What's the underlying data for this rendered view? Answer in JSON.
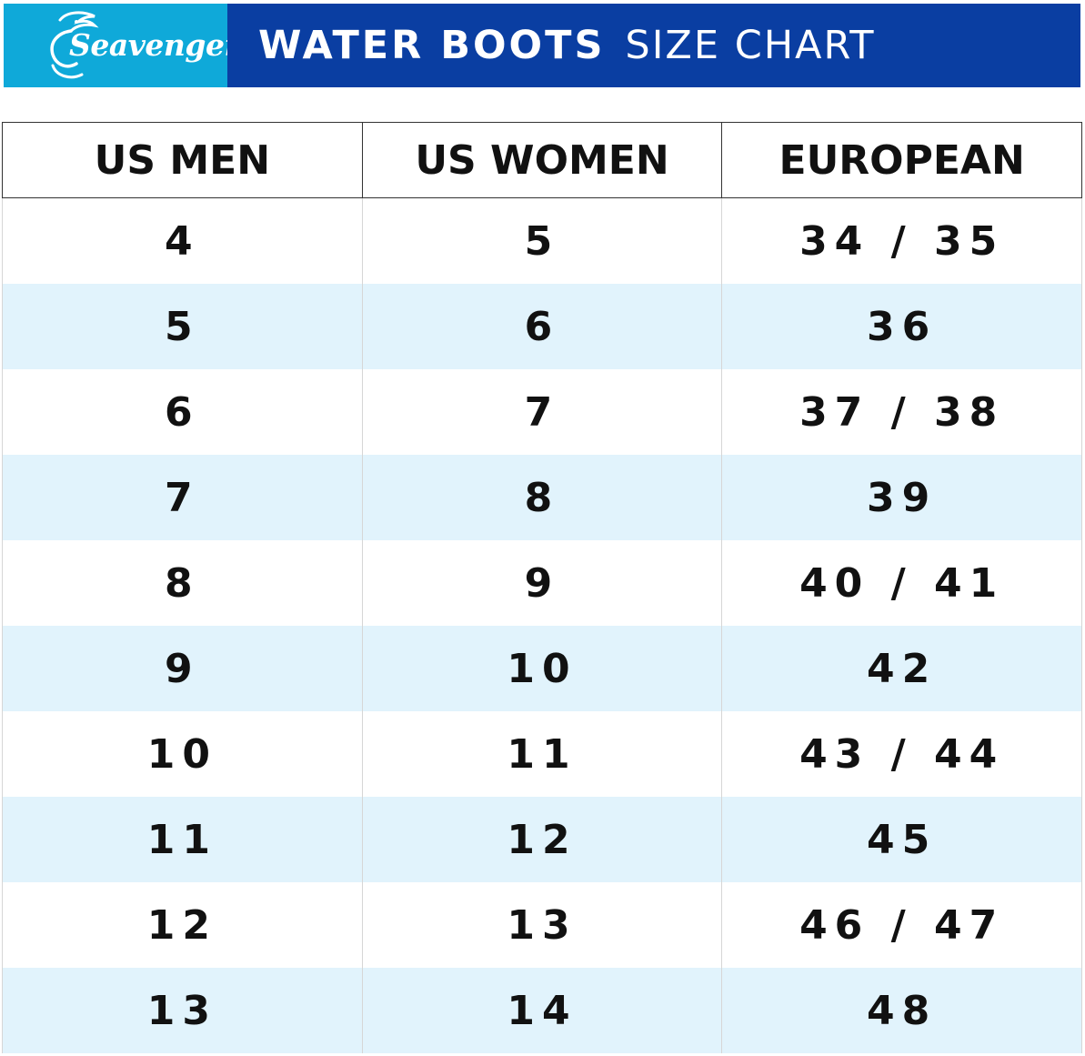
{
  "header": {
    "logo_text": "Seavenger",
    "title_bold": "WATER BOOTS",
    "title_light": "SIZE CHART"
  },
  "colors": {
    "logo_bg": "#0fa9d9",
    "title_bg": "#0a3ea2",
    "stripe": "#e1f3fc"
  },
  "table": {
    "columns": [
      "US MEN",
      "US WOMEN",
      "EUROPEAN"
    ],
    "rows": [
      [
        "4",
        "5",
        "34 / 35"
      ],
      [
        "5",
        "6",
        "36"
      ],
      [
        "6",
        "7",
        "37 / 38"
      ],
      [
        "7",
        "8",
        "39"
      ],
      [
        "8",
        "9",
        "40 / 41"
      ],
      [
        "9",
        "10",
        "42"
      ],
      [
        "10",
        "11",
        "43 / 44"
      ],
      [
        "11",
        "12",
        "45"
      ],
      [
        "12",
        "13",
        "46 / 47"
      ],
      [
        "13",
        "14",
        "48"
      ]
    ]
  }
}
